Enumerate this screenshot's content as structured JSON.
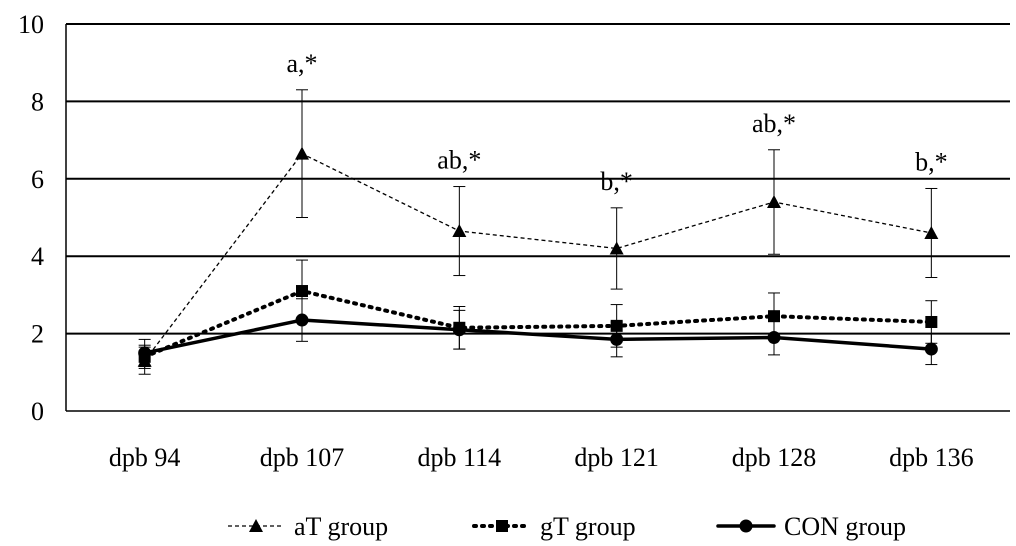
{
  "chart_data": {
    "type": "line",
    "categories": [
      "dpb 94",
      "dpb 107",
      "dpb 114",
      "dpb 121",
      "dpb 128",
      "dpb 136"
    ],
    "ylim": [
      0,
      10
    ],
    "yticks": [
      0,
      2,
      4,
      6,
      8,
      10
    ],
    "ytick_labels": [
      "0",
      "2",
      "4",
      "6",
      "8",
      "10"
    ],
    "grid": "horizontal",
    "legend_position": "bottom",
    "series": [
      {
        "name": "aT group",
        "marker": "triangle",
        "line_style": "dashed",
        "values": [
          1.3,
          6.65,
          4.65,
          4.2,
          5.4,
          4.6
        ],
        "error": [
          0.35,
          1.65,
          1.15,
          1.05,
          1.35,
          1.15
        ]
      },
      {
        "name": "gT group",
        "marker": "square",
        "line_style": "dotted",
        "values": [
          1.4,
          3.1,
          2.15,
          2.2,
          2.45,
          2.3
        ],
        "error": [
          0.3,
          0.8,
          0.55,
          0.55,
          0.6,
          0.55
        ]
      },
      {
        "name": "CON group",
        "marker": "circle",
        "line_style": "solid",
        "values": [
          1.5,
          2.35,
          2.1,
          1.85,
          1.9,
          1.6
        ],
        "error": [
          0.35,
          0.55,
          0.5,
          0.45,
          0.45,
          0.4
        ]
      }
    ],
    "annotations": [
      "",
      "a,*",
      "ab,*",
      "b,*",
      "ab,*",
      "b,*"
    ],
    "colors": {
      "line": "#000000",
      "grid": "#000000",
      "background": "#ffffff"
    }
  }
}
